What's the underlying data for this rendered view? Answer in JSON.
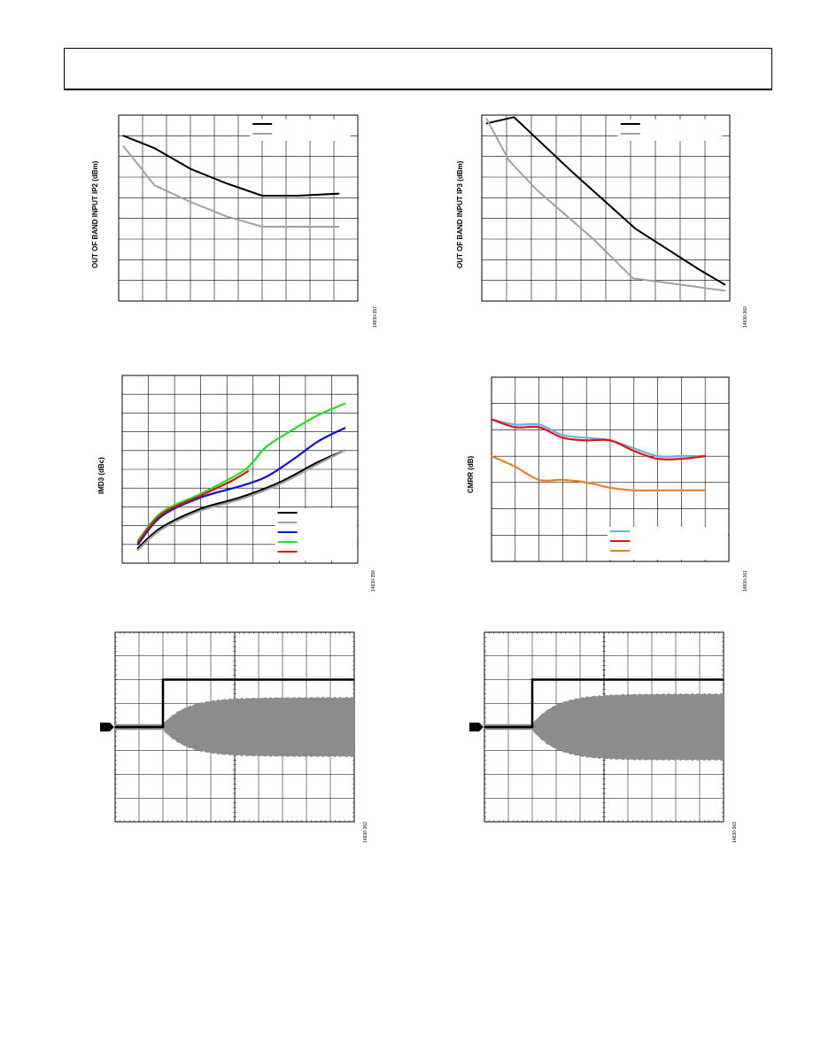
{
  "colors": {
    "black": "#000000",
    "gray": "#a0a0a0",
    "blue": "#1010d0",
    "green": "#20e020",
    "red": "#e01010",
    "lightblue": "#6aaee6",
    "orange": "#e8822a",
    "scope_fill": "#8c8c8c"
  },
  "chart_data": [
    {
      "type": "line",
      "ylabel": "OUT OF BAND INPUT IP2 (dBm)",
      "figure_id": "14830-357",
      "x": [
        0,
        1,
        2,
        3,
        4,
        5,
        6,
        7,
        8,
        9
      ],
      "xlim": [
        0,
        10
      ],
      "ylim": [
        0,
        9
      ],
      "grid": true,
      "legend_position": "top-right",
      "series": [
        {
          "color": "black",
          "x": [
            0.2,
            1.5,
            3,
            4.5,
            6,
            7.5,
            9.2
          ],
          "values": [
            8.0,
            7.4,
            6.4,
            5.7,
            5.1,
            5.1,
            5.2
          ]
        },
        {
          "color": "gray",
          "x": [
            0.2,
            1.5,
            3,
            4.5,
            6,
            7.5,
            9.2
          ],
          "values": [
            7.5,
            5.6,
            4.8,
            4.1,
            3.6,
            3.6,
            3.6
          ]
        }
      ]
    },
    {
      "type": "line",
      "ylabel": "OUT OF BAND INPUT IP3 (dBm)",
      "figure_id": "14830-360",
      "xlim": [
        0,
        10
      ],
      "ylim": [
        0,
        9
      ],
      "grid": true,
      "legend_position": "top-right",
      "series": [
        {
          "color": "black",
          "x": [
            0.2,
            1.3,
            3.6,
            6.2,
            8.8,
            9.8
          ],
          "values": [
            8.6,
            8.9,
            6.3,
            3.5,
            1.5,
            0.8
          ]
        },
        {
          "color": "gray",
          "x": [
            0.2,
            1.1,
            2.2,
            4.5,
            6.1,
            8.0,
            9.8
          ],
          "values": [
            8.8,
            6.8,
            5.4,
            3.0,
            1.1,
            0.8,
            0.5
          ]
        }
      ]
    },
    {
      "type": "line",
      "ylabel": "IMD3 (dBc)",
      "figure_id": "14830-358",
      "xlim": [
        0,
        9
      ],
      "ylim": [
        0,
        10
      ],
      "grid": true,
      "legend_position": "bottom-right",
      "series": [
        {
          "color": "black",
          "x": [
            0.6,
            1.5,
            3,
            4.5,
            6,
            7.5,
            8.5
          ],
          "values": [
            0.8,
            1.9,
            2.9,
            3.5,
            4.3,
            5.4,
            6.0
          ]
        },
        {
          "color": "gray",
          "x": [
            0.6,
            1.5,
            3,
            4.5,
            6,
            7.5,
            8.5
          ],
          "values": [
            0.7,
            1.8,
            2.8,
            3.4,
            4.2,
            5.3,
            6.0
          ]
        },
        {
          "color": "blue",
          "x": [
            0.6,
            1.5,
            3,
            4.5,
            5.5,
            6.5,
            7.5,
            8.5
          ],
          "values": [
            1.0,
            2.5,
            3.5,
            4.1,
            4.6,
            5.5,
            6.5,
            7.2
          ]
        },
        {
          "color": "green",
          "x": [
            0.6,
            1.5,
            3,
            4.5,
            5,
            5.5,
            6.5,
            7.5,
            8.5
          ],
          "values": [
            1.2,
            2.7,
            3.7,
            4.8,
            5.4,
            6.2,
            7.1,
            7.9,
            8.5
          ]
        },
        {
          "color": "red",
          "x": [
            0.6,
            1.5,
            3,
            4.2,
            4.8
          ],
          "values": [
            1.1,
            2.6,
            3.6,
            4.4,
            4.9
          ]
        }
      ]
    },
    {
      "type": "line",
      "ylabel": "CMRR (dB)",
      "figure_id": "14830-361",
      "xlim": [
        0,
        10
      ],
      "ylim": [
        0,
        7
      ],
      "grid": true,
      "legend_position": "bottom-right",
      "series": [
        {
          "color": "lightblue",
          "x": [
            0,
            1,
            2,
            3,
            4,
            5,
            6,
            7,
            8,
            9
          ],
          "values": [
            5.4,
            5.2,
            5.2,
            4.8,
            4.7,
            4.6,
            4.3,
            4.0,
            4.0,
            4.0
          ]
        },
        {
          "color": "red",
          "x": [
            0,
            1,
            2,
            3,
            4,
            5,
            6,
            7,
            8,
            9
          ],
          "values": [
            5.4,
            5.1,
            5.1,
            4.7,
            4.6,
            4.6,
            4.2,
            3.9,
            3.9,
            4.0
          ]
        },
        {
          "color": "orange",
          "x": [
            0,
            1,
            2,
            3,
            4,
            5,
            6,
            7,
            8,
            9
          ],
          "values": [
            4.0,
            3.6,
            3.1,
            3.1,
            3.0,
            2.8,
            2.7,
            2.7,
            2.7,
            2.7
          ]
        }
      ]
    },
    {
      "type": "scope",
      "figure_id": "14830-362",
      "xlim": [
        0,
        10
      ],
      "ylim": [
        0,
        8
      ],
      "grid": true,
      "step_time": 2.0,
      "step_low": 4.0,
      "step_high": 6.0,
      "burst_center": 4.0,
      "burst_amplitude": 1.25,
      "ground_marker_level": 4.0
    },
    {
      "type": "scope",
      "figure_id": "14830-363",
      "xlim": [
        0,
        10
      ],
      "ylim": [
        0,
        8
      ],
      "grid": true,
      "step_time": 2.0,
      "step_low": 4.0,
      "step_high": 6.0,
      "burst_center": 4.0,
      "burst_amplitude": 1.4,
      "ground_marker_level": 4.0
    }
  ]
}
